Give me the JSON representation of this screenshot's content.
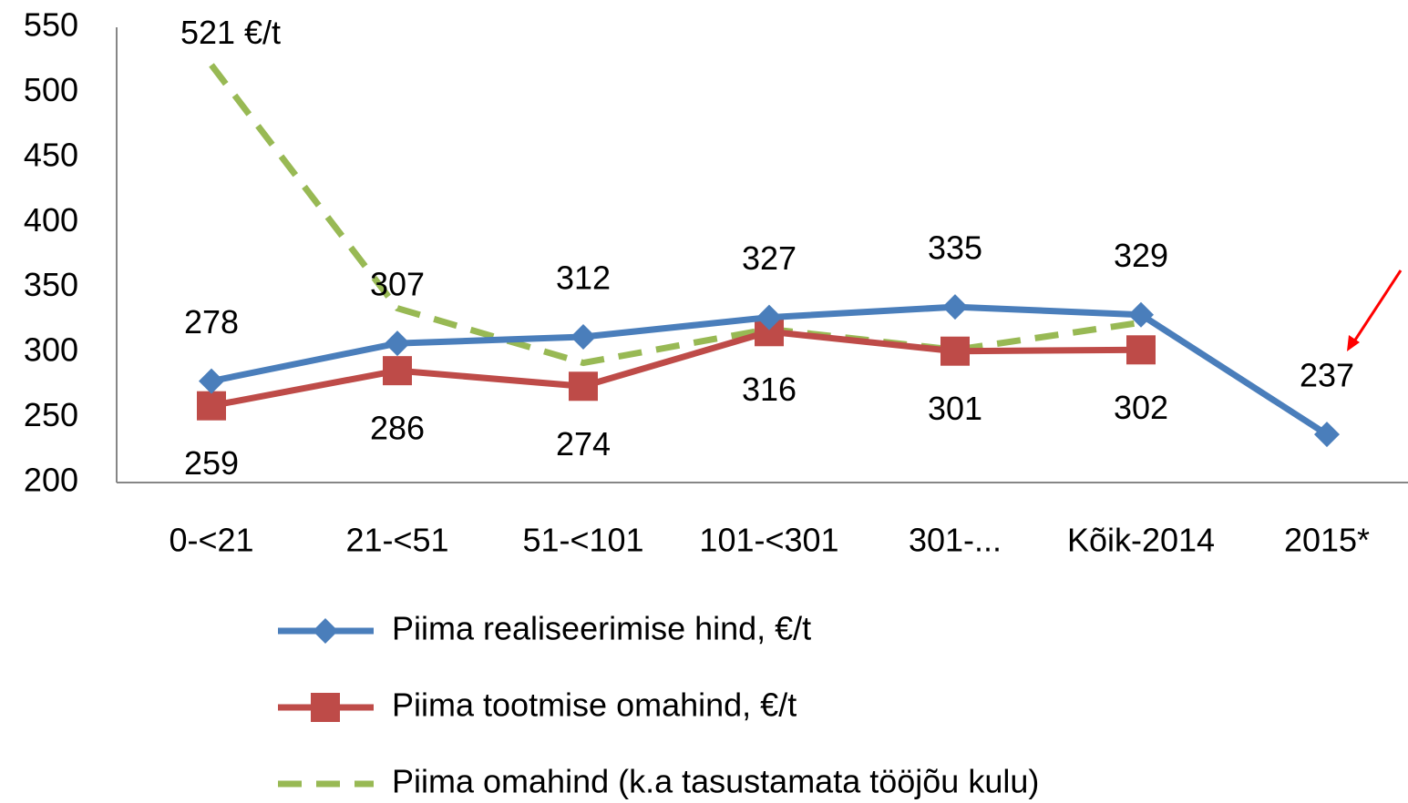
{
  "chart_data": {
    "type": "line",
    "categories": [
      "0-<21",
      "21-<51",
      "51-<101",
      "101-<301",
      "301-...",
      "Kõik-2014",
      "2015*"
    ],
    "series": [
      {
        "name": "Piima realiseerimise hind, €/t",
        "color": "#4a7ebb",
        "marker": "diamond",
        "dash": false,
        "values": [
          278,
          307,
          312,
          327,
          335,
          329,
          237
        ],
        "label_position": "above"
      },
      {
        "name": "Piima tootmise omahind, €/t",
        "color": "#be4b48",
        "marker": "square",
        "dash": false,
        "values": [
          259,
          286,
          274,
          316,
          301,
          302,
          null
        ],
        "label_position": "below"
      },
      {
        "name": "Piima omahind (k.a tasustamata tööjõu kulu)",
        "color": "#98b954",
        "marker": "none",
        "dash": true,
        "values": [
          521,
          334,
          292,
          318,
          302,
          323,
          null
        ],
        "value_labels": [
          "521 €/t",
          null,
          null,
          null,
          null,
          null,
          null
        ],
        "label_position": "above"
      }
    ],
    "ylim": [
      200,
      550
    ],
    "yticks": [
      200,
      250,
      300,
      350,
      400,
      450,
      500,
      550
    ],
    "grid": false,
    "legend": "bottom"
  }
}
